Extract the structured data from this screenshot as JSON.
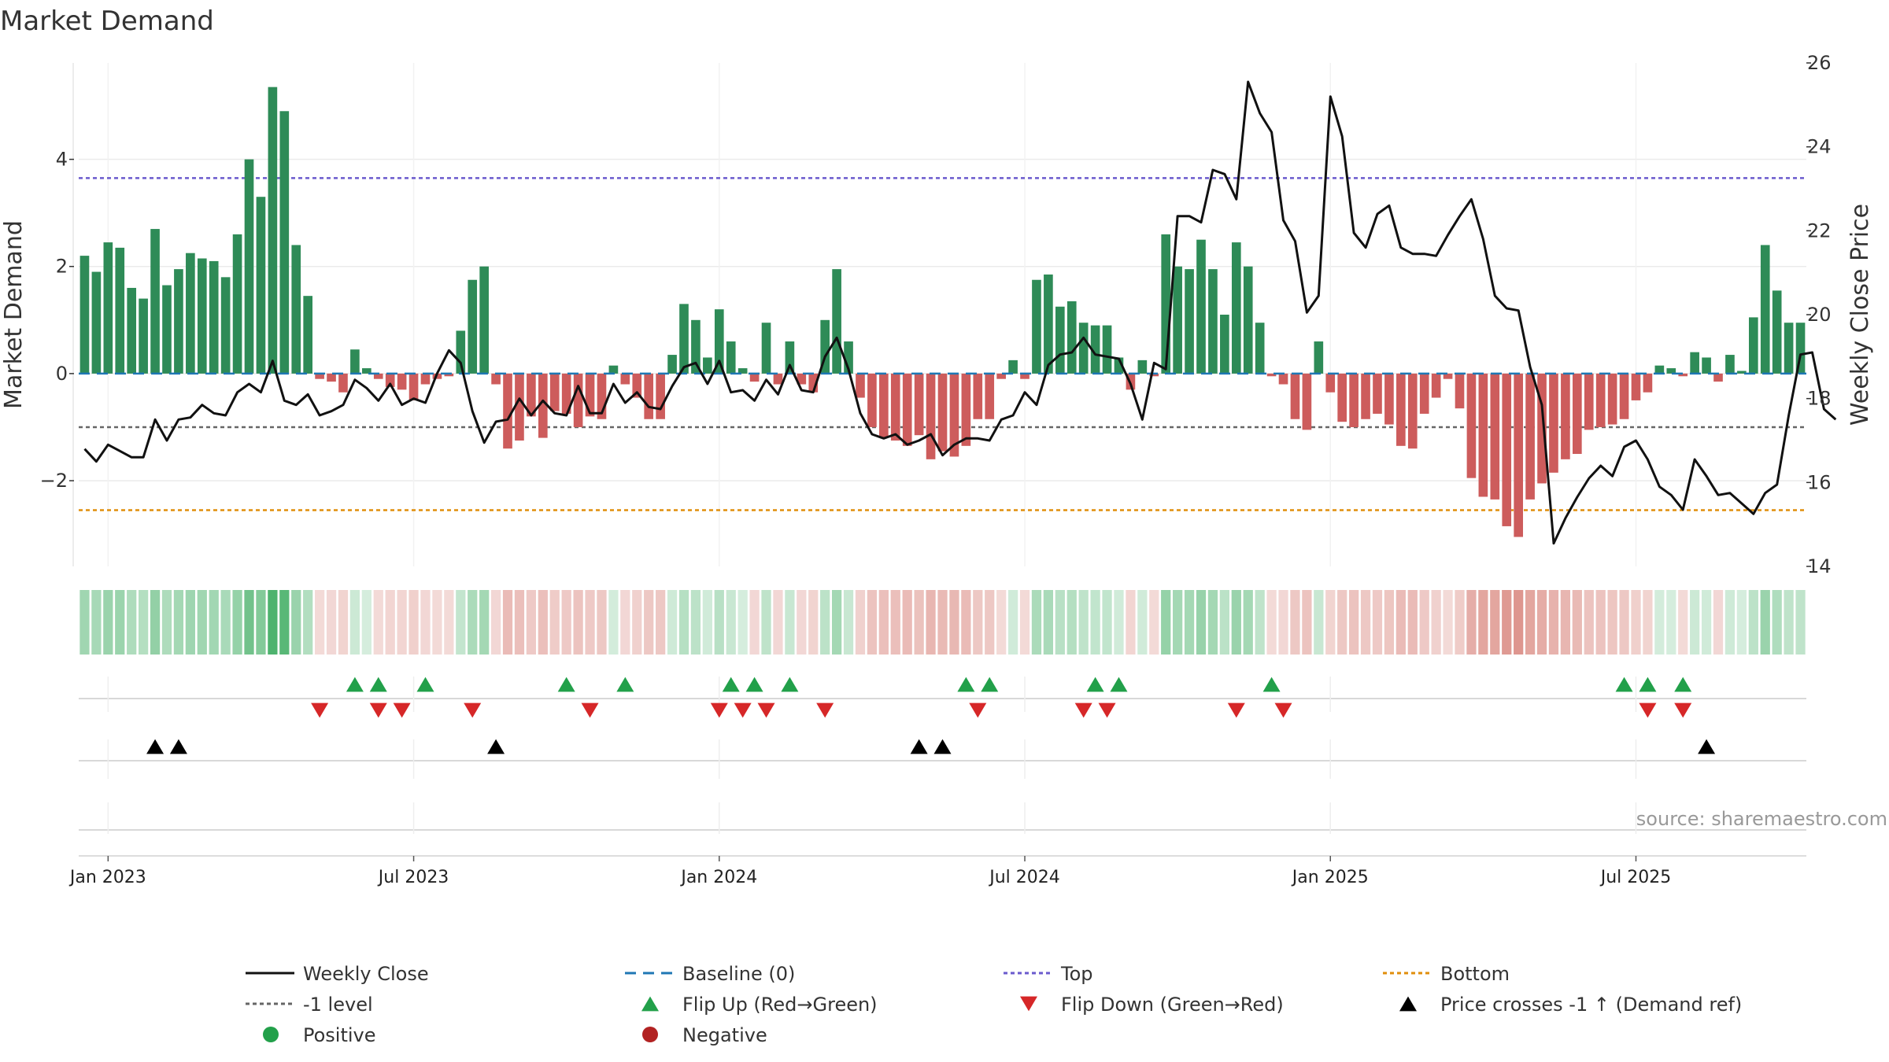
{
  "chart_data": {
    "type": "bar+line",
    "title": "Market Demand",
    "ylabel_left": "Market Demand",
    "ylabel_right": "Weekly Close Price",
    "source": "source: sharemaestro.com",
    "ylim_left": [
      -3.6,
      5.8
    ],
    "ylim_right": [
      14,
      26
    ],
    "left_ticks": [
      {
        "v": 4,
        "label": "4"
      },
      {
        "v": 2,
        "label": "2"
      },
      {
        "v": 0,
        "label": "0"
      },
      {
        "v": -2,
        "label": "−2"
      }
    ],
    "right_ticks": [
      {
        "v": 26,
        "label": "26"
      },
      {
        "v": 24,
        "label": "24"
      },
      {
        "v": 22,
        "label": "22"
      },
      {
        "v": 20,
        "label": "20"
      },
      {
        "v": 18,
        "label": "18"
      },
      {
        "v": 16,
        "label": "16"
      },
      {
        "v": 14,
        "label": "14"
      }
    ],
    "x_ticks": [
      {
        "week": 2,
        "label": "Jan 2023"
      },
      {
        "week": 28,
        "label": "Jul 2023"
      },
      {
        "week": 54,
        "label": "Jan 2024"
      },
      {
        "week": 80,
        "label": "Jul 2024"
      },
      {
        "week": 106,
        "label": "Jan 2025"
      },
      {
        "week": 132,
        "label": "Jul 2025"
      }
    ],
    "levels": {
      "top": 3.65,
      "bottom": -2.55,
      "minus_one": -1.0,
      "baseline": 0
    },
    "demand": [
      2.2,
      1.9,
      2.45,
      2.35,
      1.6,
      1.4,
      2.7,
      1.65,
      1.95,
      2.25,
      2.15,
      2.1,
      1.8,
      2.6,
      4.0,
      3.3,
      5.35,
      4.9,
      2.4,
      1.45,
      -0.1,
      -0.15,
      -0.35,
      0.45,
      0.1,
      -0.1,
      -0.25,
      -0.3,
      -0.5,
      -0.2,
      -0.1,
      -0.05,
      0.8,
      1.75,
      2.0,
      -0.2,
      -1.4,
      -1.25,
      -0.8,
      -1.2,
      -0.7,
      -0.75,
      -1.0,
      -0.8,
      -0.85,
      0.15,
      -0.2,
      -0.45,
      -0.85,
      -0.85,
      0.35,
      1.3,
      1.0,
      0.3,
      1.2,
      0.6,
      0.1,
      -0.15,
      0.95,
      -0.2,
      0.6,
      -0.2,
      -0.35,
      1.0,
      1.95,
      0.6,
      -0.45,
      -1.0,
      -1.2,
      -1.25,
      -1.35,
      -1.15,
      -1.6,
      -1.45,
      -1.55,
      -1.35,
      -0.85,
      -0.85,
      -0.1,
      0.25,
      -0.1,
      1.75,
      1.85,
      1.25,
      1.35,
      0.95,
      0.9,
      0.9,
      0.3,
      -0.3,
      0.25,
      -0.05,
      2.6,
      2.0,
      1.95,
      2.5,
      1.95,
      1.1,
      2.45,
      2.0,
      0.95,
      -0.05,
      -0.2,
      -0.85,
      -1.05,
      0.6,
      -0.35,
      -0.9,
      -1.0,
      -0.85,
      -0.75,
      -0.95,
      -1.35,
      -1.4,
      -0.75,
      -0.45,
      -0.1,
      -0.65,
      -1.95,
      -2.3,
      -2.35,
      -2.85,
      -3.05,
      -2.35,
      -2.05,
      -1.85,
      -1.6,
      -1.5,
      -1.05,
      -1.0,
      -0.95,
      -0.85,
      -0.5,
      -0.35,
      0.15,
      0.1,
      -0.05,
      0.4,
      0.3,
      -0.15,
      0.35,
      0.05,
      1.05,
      2.4,
      1.55,
      0.95,
      0.95
    ],
    "close": [
      16.8,
      16.5,
      16.9,
      16.75,
      16.6,
      16.6,
      17.5,
      17.0,
      17.5,
      17.55,
      17.85,
      17.65,
      17.6,
      18.15,
      18.35,
      18.15,
      18.9,
      17.95,
      17.85,
      18.1,
      17.6,
      17.7,
      17.85,
      18.45,
      18.25,
      17.95,
      18.35,
      17.85,
      18.0,
      17.9,
      18.6,
      19.15,
      18.85,
      17.7,
      16.95,
      17.45,
      17.5,
      18.0,
      17.6,
      17.95,
      17.65,
      17.6,
      18.3,
      17.65,
      17.65,
      18.35,
      17.9,
      18.15,
      17.8,
      17.75,
      18.3,
      18.75,
      18.85,
      18.35,
      18.9,
      18.15,
      18.2,
      17.95,
      18.45,
      18.1,
      18.8,
      18.2,
      18.15,
      19.0,
      19.45,
      18.7,
      17.65,
      17.15,
      17.05,
      17.15,
      16.9,
      17.0,
      17.15,
      16.65,
      16.9,
      17.05,
      17.05,
      17.0,
      17.5,
      17.6,
      18.15,
      17.85,
      18.8,
      19.05,
      19.1,
      19.45,
      19.05,
      19.0,
      18.95,
      18.35,
      17.5,
      18.85,
      18.7,
      22.35,
      22.35,
      22.2,
      23.45,
      23.35,
      22.75,
      25.55,
      24.8,
      24.35,
      22.25,
      21.75,
      20.05,
      20.45,
      25.2,
      24.25,
      21.95,
      21.6,
      22.4,
      22.6,
      21.6,
      21.45,
      21.45,
      21.4,
      21.9,
      22.35,
      22.75,
      21.8,
      20.45,
      20.15,
      20.1,
      18.75,
      17.85,
      14.55,
      15.15,
      15.65,
      16.1,
      16.4,
      16.15,
      16.85,
      17.0,
      16.55,
      15.9,
      15.7,
      15.35,
      16.55,
      16.15,
      15.7,
      15.75,
      15.5,
      15.25,
      15.75,
      15.95,
      17.6,
      19.05,
      19.1,
      17.75,
      17.5
    ],
    "heat_colors": [
      "#2e8b57",
      "#cd5c5c"
    ],
    "flip_up_weeks": [
      23,
      25,
      29,
      41,
      46,
      55,
      57,
      60,
      75,
      77,
      86,
      88,
      101,
      131,
      133,
      136
    ],
    "flip_down_weeks": [
      20,
      25,
      27,
      33,
      43,
      54,
      56,
      58,
      63,
      76,
      85,
      87,
      98,
      102,
      133,
      136
    ],
    "price_cross_weeks": [
      6,
      8,
      35,
      71,
      73,
      138
    ],
    "legend": [
      {
        "label": "Weekly Close",
        "kind": "line",
        "color": "#111111"
      },
      {
        "label": "Baseline (0)",
        "kind": "dash",
        "color": "#1f77b4"
      },
      {
        "label": "Top",
        "kind": "dot",
        "color": "#6a5acd"
      },
      {
        "label": "Bottom",
        "kind": "dot",
        "color": "#e08e0b"
      },
      {
        "label": "-1 level",
        "kind": "dot",
        "color": "#666666"
      },
      {
        "label": "Flip Up (Red→Green)",
        "kind": "tri-up",
        "color": "#22a04a"
      },
      {
        "label": "Flip Down (Green→Red)",
        "kind": "tri-down",
        "color": "#d62728"
      },
      {
        "label": "Price crosses -1 ↑ (Demand ref)",
        "kind": "tri-up",
        "color": "#000000"
      },
      {
        "label": "Positive",
        "kind": "circle",
        "color": "#22a04a"
      },
      {
        "label": "Negative",
        "kind": "circle",
        "color": "#b22222"
      }
    ]
  }
}
